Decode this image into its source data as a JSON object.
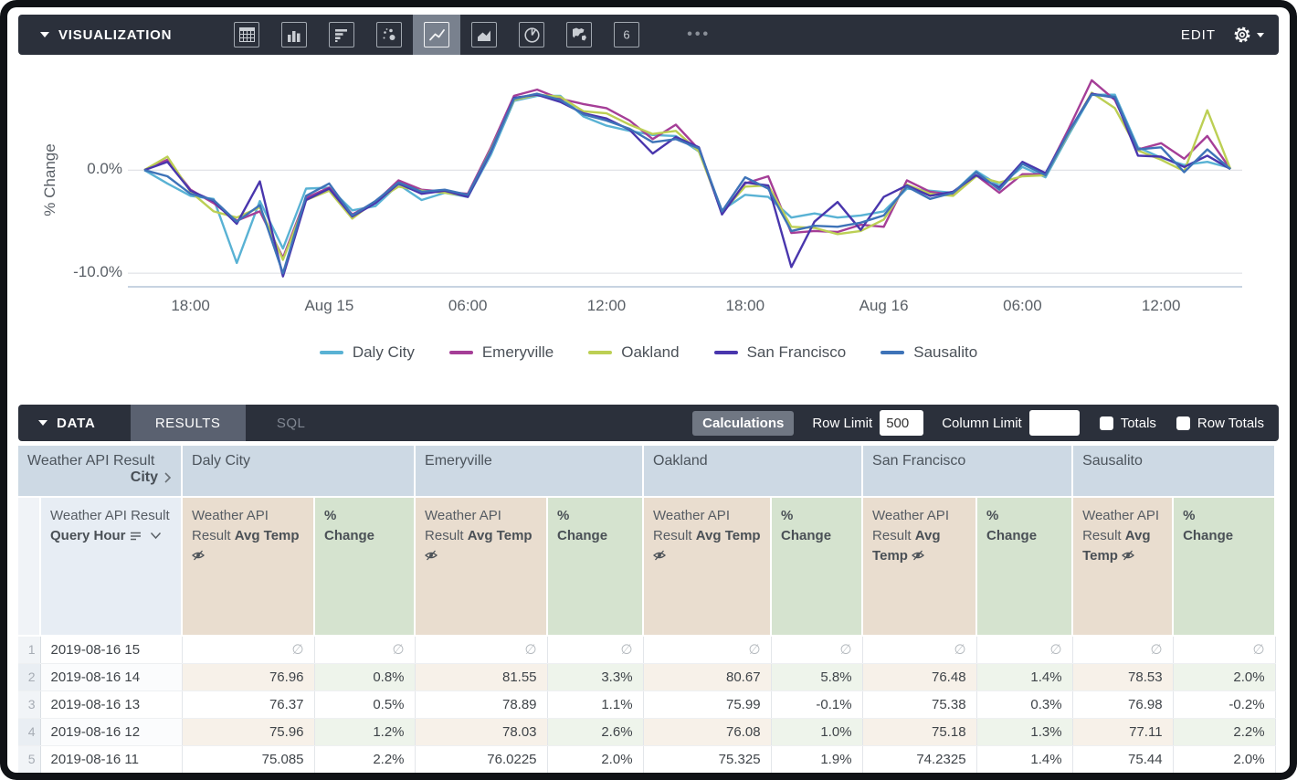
{
  "toolbar": {
    "title": "VISUALIZATION",
    "more_label": "•••",
    "edit_label": "EDIT",
    "single_value_glyph": "6",
    "selected_viz": "line"
  },
  "chart_data": {
    "type": "line",
    "ylabel": "% Change",
    "grid": "horizontal",
    "legend_position": "bottom",
    "ylim": [
      -11.4,
      9.4
    ],
    "y_ticks": [
      {
        "label": "0.0%",
        "value": 0
      },
      {
        "label": "-10.0%",
        "value": -10
      }
    ],
    "x_ticks": [
      {
        "label": "18:00",
        "i": 2
      },
      {
        "label": "Aug 15",
        "i": 8
      },
      {
        "label": "06:00",
        "i": 14
      },
      {
        "label": "12:00",
        "i": 20
      },
      {
        "label": "18:00",
        "i": 26
      },
      {
        "label": "Aug 16",
        "i": 32
      },
      {
        "label": "06:00",
        "i": 38
      },
      {
        "label": "12:00",
        "i": 44
      }
    ],
    "x_unit": "hourly from 2019-08-14 16:00 to 2019-08-16 15:00",
    "series": [
      {
        "name": "Daly City",
        "color": "#59b2d4",
        "values": [
          0,
          -1.3,
          -2.5,
          -2.8,
          -9,
          -3,
          -7.6,
          -1.8,
          -1.7,
          -3.9,
          -3.5,
          -1.4,
          -2.9,
          -2.2,
          -2.6,
          1.5,
          6.7,
          7.2,
          7.2,
          5.2,
          4.3,
          3.8,
          3.4,
          3.3,
          1.8,
          -3.9,
          -2.4,
          -2.6,
          -4.6,
          -4.2,
          -4.6,
          -4.4,
          -4,
          -1.8,
          -2,
          -2.2,
          -0.1,
          -1.5,
          0.3,
          -0.7,
          3.4,
          7.3,
          7.3,
          2.2,
          1.2,
          0.5,
          0.8,
          0.2
        ]
      },
      {
        "name": "Emeryville",
        "color": "#a53e97",
        "values": [
          0,
          1,
          -1.9,
          -3.2,
          -4.9,
          -4,
          -8.5,
          -2.7,
          -1.7,
          -4.3,
          -3.1,
          -1,
          -1.9,
          -2.1,
          -2.3,
          2.2,
          7.2,
          7.8,
          6.9,
          6.4,
          6,
          4.8,
          3,
          4.4,
          2,
          -4.2,
          -1.3,
          -0.6,
          -6.1,
          -5.9,
          -6,
          -5.3,
          -5.5,
          -1,
          -2.1,
          -2.4,
          -0.5,
          -2.2,
          -0.4,
          -0.4,
          4,
          8.7,
          6.8,
          2,
          2.6,
          1.1,
          3.3,
          0.1
        ]
      },
      {
        "name": "Oakland",
        "color": "#bccf54",
        "values": [
          0,
          1.3,
          -2.1,
          -4,
          -4.6,
          -3.6,
          -8.7,
          -2.9,
          -2,
          -4.7,
          -3,
          -1.6,
          -2,
          -2.2,
          -2.5,
          2,
          6.8,
          7.3,
          7.1,
          5.7,
          5.5,
          4.4,
          3.5,
          3.8,
          1.8,
          -4.1,
          -1.6,
          -1.5,
          -5.5,
          -5.6,
          -6.2,
          -5.9,
          -4.8,
          -1.4,
          -2.3,
          -2.5,
          -0.6,
          -1.2,
          -0.6,
          -0.5,
          3.6,
          7.5,
          6,
          1.9,
          1,
          -0.1,
          5.8,
          0.1
        ]
      },
      {
        "name": "San Francisco",
        "color": "#4936ad",
        "values": [
          0,
          0.8,
          -2,
          -3,
          -5.2,
          -1.1,
          -10.3,
          -2.9,
          -1.8,
          -4.5,
          -3.2,
          -1.3,
          -2.3,
          -2,
          -2.6,
          1.8,
          7,
          7.3,
          6.6,
          5.5,
          5,
          3.9,
          1.6,
          3.2,
          2.2,
          -4.3,
          -1.2,
          -1.5,
          -9.4,
          -5,
          -3.1,
          -5.8,
          -2.6,
          -1.5,
          -2.5,
          -2.1,
          -0.5,
          -1.7,
          0.8,
          -0.3,
          3.7,
          7.4,
          7,
          1.4,
          1.3,
          0.3,
          1.4,
          0.1
        ]
      },
      {
        "name": "Sausalito",
        "color": "#3e73b8",
        "values": [
          0,
          -0.6,
          -2.3,
          -2.9,
          -5,
          -3.4,
          -10,
          -2.5,
          -1.3,
          -4.4,
          -3,
          -1.2,
          -2.1,
          -1.9,
          -2.4,
          1.9,
          6.9,
          7.4,
          6.8,
          5.4,
          4.8,
          4,
          2.7,
          3,
          2.1,
          -4,
          -0.7,
          -1.8,
          -5.9,
          -5.4,
          -5.5,
          -5.1,
          -4.4,
          -1.6,
          -2.8,
          -2.2,
          -0.2,
          -1.9,
          0.6,
          -0.5,
          3.7,
          7.3,
          7.1,
          2,
          2.2,
          -0.2,
          2,
          0.1
        ]
      }
    ]
  },
  "data_bar": {
    "title": "DATA",
    "tabs": [
      {
        "label": "RESULTS",
        "active": true
      },
      {
        "label": "SQL",
        "active": false
      }
    ],
    "calculations_label": "Calculations",
    "row_limit_label": "Row Limit",
    "row_limit_value": "500",
    "column_limit_label": "Column Limit",
    "column_limit_value": "",
    "totals_label": "Totals",
    "totals_checked": false,
    "row_totals_label": "Row Totals",
    "row_totals_checked": false
  },
  "table": {
    "dimension_header": {
      "line1": "Weather API Result",
      "line2": "City"
    },
    "query_hour_header": {
      "prefix": "Weather API Result",
      "bold": "Query Hour"
    },
    "groups": [
      "Daly City",
      "Emeryville",
      "Oakland",
      "San Francisco",
      "Sausalito"
    ],
    "measure_headers": {
      "temp_prefix": "Weather API Result",
      "temp_bold": "Avg Temp",
      "pct_line1": "%",
      "pct_line2": "Change"
    },
    "null_symbol": "∅",
    "rows": [
      {
        "num": "1",
        "hour": "2019-08-16 15",
        "cells": [
          "∅",
          "∅",
          "∅",
          "∅",
          "∅",
          "∅",
          "∅",
          "∅",
          "∅",
          "∅"
        ]
      },
      {
        "num": "2",
        "hour": "2019-08-16 14",
        "cells": [
          "76.96",
          "0.8%",
          "81.55",
          "3.3%",
          "80.67",
          "5.8%",
          "76.48",
          "1.4%",
          "78.53",
          "2.0%"
        ]
      },
      {
        "num": "3",
        "hour": "2019-08-16 13",
        "cells": [
          "76.37",
          "0.5%",
          "78.89",
          "1.1%",
          "75.99",
          "-0.1%",
          "75.38",
          "0.3%",
          "76.98",
          "-0.2%"
        ]
      },
      {
        "num": "4",
        "hour": "2019-08-16 12",
        "cells": [
          "75.96",
          "1.2%",
          "78.03",
          "2.6%",
          "76.08",
          "1.0%",
          "75.18",
          "1.3%",
          "77.11",
          "2.2%"
        ]
      },
      {
        "num": "5",
        "hour": "2019-08-16 11",
        "cells": [
          "75.085",
          "2.2%",
          "76.0225",
          "2.0%",
          "75.325",
          "1.9%",
          "74.2325",
          "1.4%",
          "75.44",
          "2.0%"
        ]
      }
    ]
  }
}
